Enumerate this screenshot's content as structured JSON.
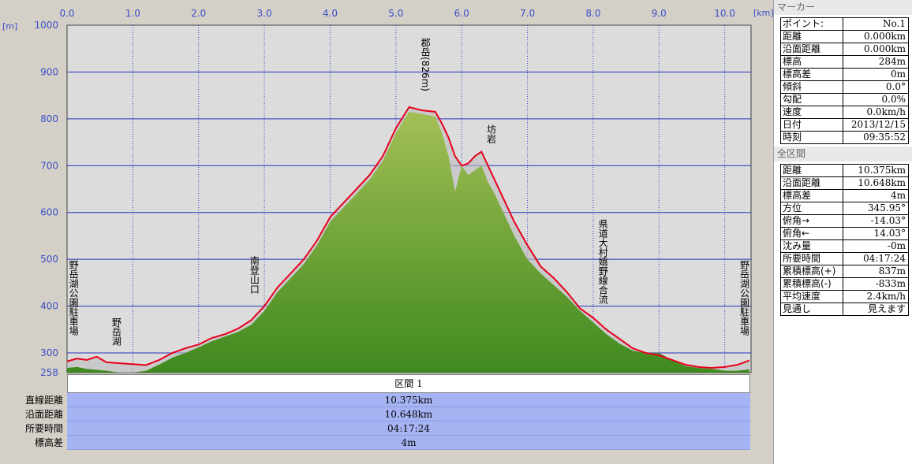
{
  "chart_data": {
    "type": "area",
    "x_unit": "[km]",
    "y_unit": "[m]",
    "xlim": [
      0,
      10.4
    ],
    "ylim": [
      258,
      1000
    ],
    "x_ticks": [
      "0.0",
      "1.0",
      "2.0",
      "3.0",
      "4.0",
      "5.0",
      "6.0",
      "7.0",
      "8.0",
      "9.0",
      "10.0"
    ],
    "y_ticks": [
      "1000",
      "900",
      "800",
      "700",
      "600",
      "500",
      "400",
      "300",
      "258"
    ],
    "grid": true,
    "series": [
      {
        "color": "#e8001c",
        "x": [
          0,
          0.15,
          0.3,
          0.45,
          0.6,
          0.8,
          1.0,
          1.2,
          1.4,
          1.6,
          1.8,
          2.0,
          2.2,
          2.4,
          2.6,
          2.8,
          3.0,
          3.2,
          3.4,
          3.6,
          3.8,
          4.0,
          4.2,
          4.4,
          4.6,
          4.8,
          5.0,
          5.2,
          5.4,
          5.6,
          5.7,
          5.8,
          5.9,
          6.0,
          6.1,
          6.2,
          6.3,
          6.4,
          6.5,
          6.6,
          6.8,
          7.0,
          7.2,
          7.4,
          7.6,
          7.8,
          8.0,
          8.2,
          8.4,
          8.6,
          8.8,
          9.0,
          9.2,
          9.4,
          9.6,
          9.8,
          10.0,
          10.2,
          10.375
        ],
        "y": [
          282,
          288,
          285,
          292,
          280,
          278,
          276,
          274,
          285,
          300,
          310,
          318,
          332,
          340,
          352,
          370,
          400,
          440,
          470,
          500,
          540,
          590,
          620,
          650,
          680,
          720,
          780,
          825,
          818,
          815,
          790,
          760,
          720,
          700,
          705,
          720,
          730,
          700,
          670,
          640,
          580,
          530,
          485,
          460,
          430,
          395,
          375,
          350,
          330,
          310,
          300,
          295,
          285,
          275,
          270,
          268,
          270,
          275,
          284
        ]
      },
      {
        "color": "#6e9a34",
        "x": [
          0,
          0.15,
          0.3,
          0.45,
          0.6,
          0.8,
          1.0,
          1.2,
          1.4,
          1.6,
          1.8,
          2.0,
          2.2,
          2.4,
          2.6,
          2.8,
          3.0,
          3.2,
          3.4,
          3.6,
          3.8,
          4.0,
          4.2,
          4.4,
          4.6,
          4.8,
          5.0,
          5.2,
          5.4,
          5.6,
          5.7,
          5.8,
          5.9,
          6.0,
          6.1,
          6.2,
          6.3,
          6.4,
          6.5,
          6.6,
          6.8,
          7.0,
          7.2,
          7.4,
          7.6,
          7.8,
          8.0,
          8.2,
          8.4,
          8.6,
          8.8,
          9.0,
          9.2,
          9.4,
          9.6,
          9.8,
          10.0,
          10.2,
          10.375
        ],
        "y": [
          268,
          270,
          266,
          264,
          262,
          258,
          258,
          262,
          275,
          290,
          300,
          312,
          325,
          335,
          345,
          360,
          390,
          430,
          460,
          490,
          530,
          580,
          610,
          640,
          670,
          710,
          770,
          815,
          810,
          805,
          770,
          720,
          645,
          700,
          680,
          690,
          700,
          665,
          640,
          610,
          550,
          500,
          470,
          445,
          420,
          390,
          365,
          340,
          320,
          305,
          300,
          300,
          285,
          272,
          268,
          266,
          262,
          262,
          265
        ]
      }
    ],
    "annotations": [
      {
        "label": "野岳湖公園駐車場",
        "x": 0.05
      },
      {
        "label": "野岳湖",
        "x": 0.7
      },
      {
        "label": "南登山口",
        "x": 2.8
      },
      {
        "label": "郡岳(826m)",
        "x": 5.4
      },
      {
        "label": "坊岩",
        "x": 6.4
      },
      {
        "label": "県道大村嬉野線合流",
        "x": 8.1
      },
      {
        "label": "野岳湖公園駐車場",
        "x": 10.25
      }
    ]
  },
  "section": {
    "title": "区間 1",
    "rows": [
      {
        "label": "直線距離",
        "value": "10.375km"
      },
      {
        "label": "沿面距離",
        "value": "10.648km"
      },
      {
        "label": "所要時間",
        "value": "04:17:24"
      },
      {
        "label": "標高差",
        "value": "4m"
      }
    ]
  },
  "marker_panel": {
    "title": "マーカー",
    "rows": [
      {
        "label": "ポイント:",
        "value": "No.1"
      },
      {
        "label": "距離",
        "value": "0.000km"
      },
      {
        "label": "沿面距離",
        "value": "0.000km"
      },
      {
        "label": "標高",
        "value": "284m"
      },
      {
        "label": "標高差",
        "value": "0m"
      },
      {
        "label": "傾斜",
        "value": "0.0°"
      },
      {
        "label": "勾配",
        "value": "0.0%"
      },
      {
        "label": "速度",
        "value": "0.0km/h"
      },
      {
        "label": "日付",
        "value": "2013/12/15"
      },
      {
        "label": "時刻",
        "value": "09:35:52"
      }
    ]
  },
  "full_panel": {
    "title": "全区間",
    "rows": [
      {
        "label": "距離",
        "value": "10.375km"
      },
      {
        "label": "沿面距離",
        "value": "10.648km"
      },
      {
        "label": "標高差",
        "value": "4m"
      },
      {
        "label": "方位",
        "value": "345.95°"
      },
      {
        "label": "俯角→",
        "value": "-14.03°"
      },
      {
        "label": "俯角←",
        "value": "14.03°"
      },
      {
        "label": "沈み量",
        "value": "-0m"
      },
      {
        "label": "所要時間",
        "value": "04:17:24"
      },
      {
        "label": "累積標高(+)",
        "value": "837m"
      },
      {
        "label": "累積標高(-)",
        "value": "-833m"
      },
      {
        "label": "平均速度",
        "value": "2.4km/h"
      },
      {
        "label": "見通し",
        "value": "見えます"
      }
    ]
  }
}
